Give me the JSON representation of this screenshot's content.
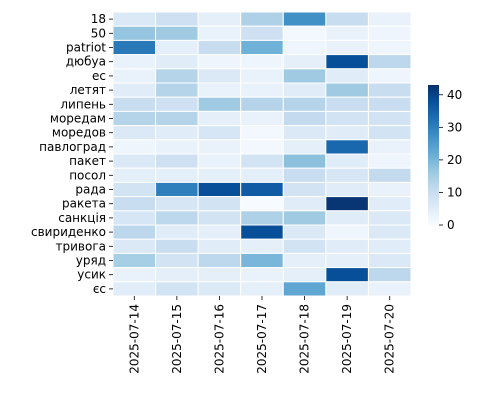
{
  "chart_data": {
    "type": "heatmap",
    "title": "",
    "xlabel": "",
    "ylabel": "",
    "x_labels": [
      "2025-07-14",
      "2025-07-15",
      "2025-07-16",
      "2025-07-17",
      "2025-07-18",
      "2025-07-19",
      "2025-07-20"
    ],
    "y_labels": [
      "18",
      "50",
      "patriot",
      "дюбуа",
      "ес",
      "летят",
      "липень",
      "морeдам",
      "моредов",
      "павлоград",
      "пакет",
      "посол",
      "рада",
      "ракета",
      "санкція",
      "свириденко",
      "тривога",
      "уряд",
      "усик",
      "єс"
    ],
    "values": [
      [
        6,
        9,
        4,
        14,
        27,
        10,
        3
      ],
      [
        17,
        16,
        3,
        9,
        1,
        3,
        2
      ],
      [
        31,
        4,
        10,
        21,
        2,
        3,
        2
      ],
      [
        3,
        5,
        2,
        2,
        4,
        38,
        12
      ],
      [
        3,
        13,
        6,
        3,
        16,
        5,
        2
      ],
      [
        5,
        13,
        3,
        3,
        5,
        16,
        10
      ],
      [
        10,
        9,
        16,
        13,
        13,
        10,
        10
      ],
      [
        13,
        13,
        4,
        3,
        11,
        8,
        8
      ],
      [
        6,
        5,
        7,
        1,
        6,
        5,
        8
      ],
      [
        2,
        3,
        3,
        1,
        4,
        34,
        3
      ],
      [
        6,
        9,
        3,
        8,
        18,
        5,
        2
      ],
      [
        4,
        4,
        4,
        4,
        10,
        7,
        11
      ],
      [
        8,
        30,
        38,
        36,
        8,
        5,
        3
      ],
      [
        10,
        7,
        8,
        0,
        5,
        42,
        5
      ],
      [
        7,
        12,
        8,
        14,
        16,
        5,
        6
      ],
      [
        12,
        5,
        4,
        38,
        6,
        2,
        6
      ],
      [
        6,
        10,
        5,
        4,
        8,
        5,
        5
      ],
      [
        15,
        8,
        12,
        20,
        4,
        4,
        6
      ],
      [
        3,
        4,
        4,
        3,
        4,
        38,
        12
      ],
      [
        5,
        8,
        6,
        4,
        23,
        5,
        3
      ]
    ],
    "colorbar": {
      "min": 0,
      "max": 43,
      "ticks": [
        0,
        10,
        20,
        30,
        40
      ]
    },
    "colormap": "Blues",
    "grid_lines": "white"
  }
}
